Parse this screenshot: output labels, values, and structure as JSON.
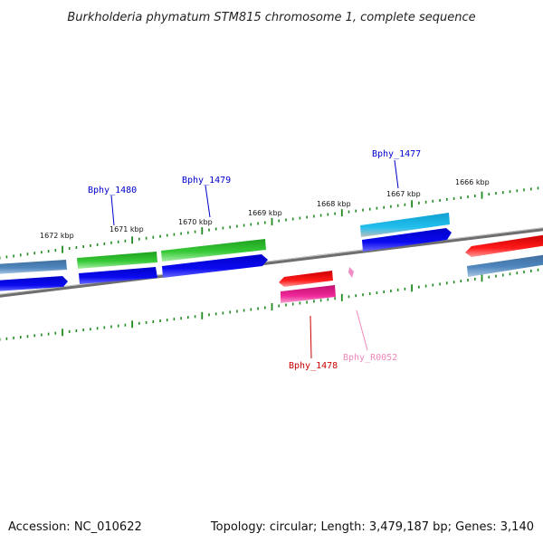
{
  "title": "Burkholderia phymatum STM815 chromosome 1, complete sequence",
  "footer": {
    "accession": "Accession: NC_010622",
    "summary": "Topology: circular; Length: 3,479,187 bp; Genes: 3,140"
  },
  "scale_labels": [
    "1672 kbp",
    "1671 kbp",
    "1670 kbp",
    "1669 kbp",
    "1668 kbp",
    "1667 kbp",
    "1666 kbp"
  ],
  "gene_labels": {
    "bphy_1477": "Bphy_1477",
    "bphy_1478": "Bphy_1478",
    "bphy_1479": "Bphy_1479",
    "bphy_1480": "Bphy_1480",
    "bphy_r0052": "Bphy_R0052"
  },
  "colors": {
    "backbone": "#7a7a7a",
    "cds_blue": "#0000ee",
    "cog_steelblue": "#4a7fb5",
    "cog_green": "#2fbf2f",
    "cog_cyan": "#1ab6e6",
    "cog_red": "#e00000",
    "cog_magenta": "#e0208a",
    "rna_pink": "#f39ac9",
    "tick_green": "#1f8a1f",
    "label_blue": "#0000cc",
    "label_red": "#cc0000",
    "label_pink": "#ee88bb"
  }
}
